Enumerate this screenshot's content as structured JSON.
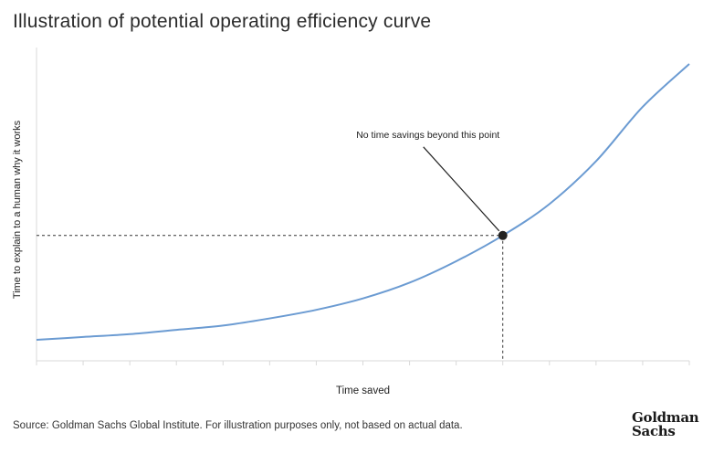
{
  "title": "Illustration of potential operating efficiency curve",
  "source": "Source: Goldman Sachs Global Institute. For illustration purposes only, not based on actual data.",
  "logo": {
    "line1": "Goldman",
    "line2": "Sachs"
  },
  "colors": {
    "curve": "#6b9bd2",
    "axis": "#d9d9d9",
    "marker": "#222222",
    "guide": "#333333"
  },
  "chart_data": {
    "type": "line",
    "title": "Illustration of potential operating efficiency curve",
    "xlabel": "Time saved",
    "ylabel": "Time to explain to a human why it works",
    "xlim": [
      0,
      14
    ],
    "ylim": [
      0,
      10
    ],
    "x_ticks": [
      0,
      1,
      2,
      3,
      4,
      5,
      6,
      7,
      8,
      9,
      10,
      11,
      12,
      13,
      14
    ],
    "series": [
      {
        "name": "Operating efficiency curve",
        "x": [
          0,
          1,
          2,
          3,
          4,
          5,
          6,
          7,
          8,
          9,
          10,
          11,
          12,
          13,
          14
        ],
        "y": [
          0.35,
          0.45,
          0.55,
          0.7,
          0.85,
          1.1,
          1.4,
          1.8,
          2.35,
          3.1,
          4.0,
          5.1,
          6.6,
          8.5,
          10.0
        ]
      }
    ],
    "highlight_point": {
      "x": 10,
      "y": 4.0,
      "label": "No time savings beyond this point"
    }
  }
}
